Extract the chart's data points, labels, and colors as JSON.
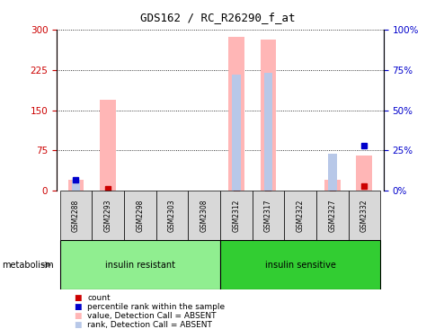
{
  "title": "GDS162 / RC_R26290_f_at",
  "samples": [
    "GSM2288",
    "GSM2293",
    "GSM2298",
    "GSM2303",
    "GSM2308",
    "GSM2312",
    "GSM2317",
    "GSM2322",
    "GSM2327",
    "GSM2332"
  ],
  "groups": [
    {
      "label": "insulin resistant",
      "color": "#90EE90",
      "start": 0,
      "end": 4
    },
    {
      "label": "insulin sensitive",
      "color": "#32CD32",
      "start": 5,
      "end": 9
    }
  ],
  "value_absent": [
    20,
    170,
    0,
    0,
    0,
    287,
    282,
    0,
    20,
    65
  ],
  "rank_absent_pct": [
    7,
    0,
    0,
    0,
    0,
    72,
    73,
    0,
    23,
    0
  ],
  "count": [
    10,
    3,
    0,
    0,
    0,
    3,
    3,
    0,
    5,
    8
  ],
  "percentile_rank_pct": [
    7,
    0,
    0,
    0,
    0,
    0,
    0,
    0,
    0,
    28
  ],
  "ylim_left": [
    0,
    300
  ],
  "ylim_right": [
    0,
    100
  ],
  "yticks_left": [
    0,
    75,
    150,
    225,
    300
  ],
  "yticks_right": [
    0,
    25,
    50,
    75,
    100
  ],
  "ytick_labels_left": [
    "0",
    "75",
    "150",
    "225",
    "300"
  ],
  "ytick_labels_right": [
    "0%",
    "25%",
    "50%",
    "75%",
    "100%"
  ],
  "value_absent_color": "#FFB6B6",
  "rank_absent_color": "#B8C8E8",
  "count_color": "#CC0000",
  "percentile_color": "#0000CC",
  "tick_label_color_left": "#CC0000",
  "tick_label_color_right": "#0000CC",
  "legend_items": [
    {
      "label": "count",
      "color": "#CC0000"
    },
    {
      "label": "percentile rank within the sample",
      "color": "#0000CC"
    },
    {
      "label": "value, Detection Call = ABSENT",
      "color": "#FFB6B6"
    },
    {
      "label": "rank, Detection Call = ABSENT",
      "color": "#B8C8E8"
    }
  ]
}
